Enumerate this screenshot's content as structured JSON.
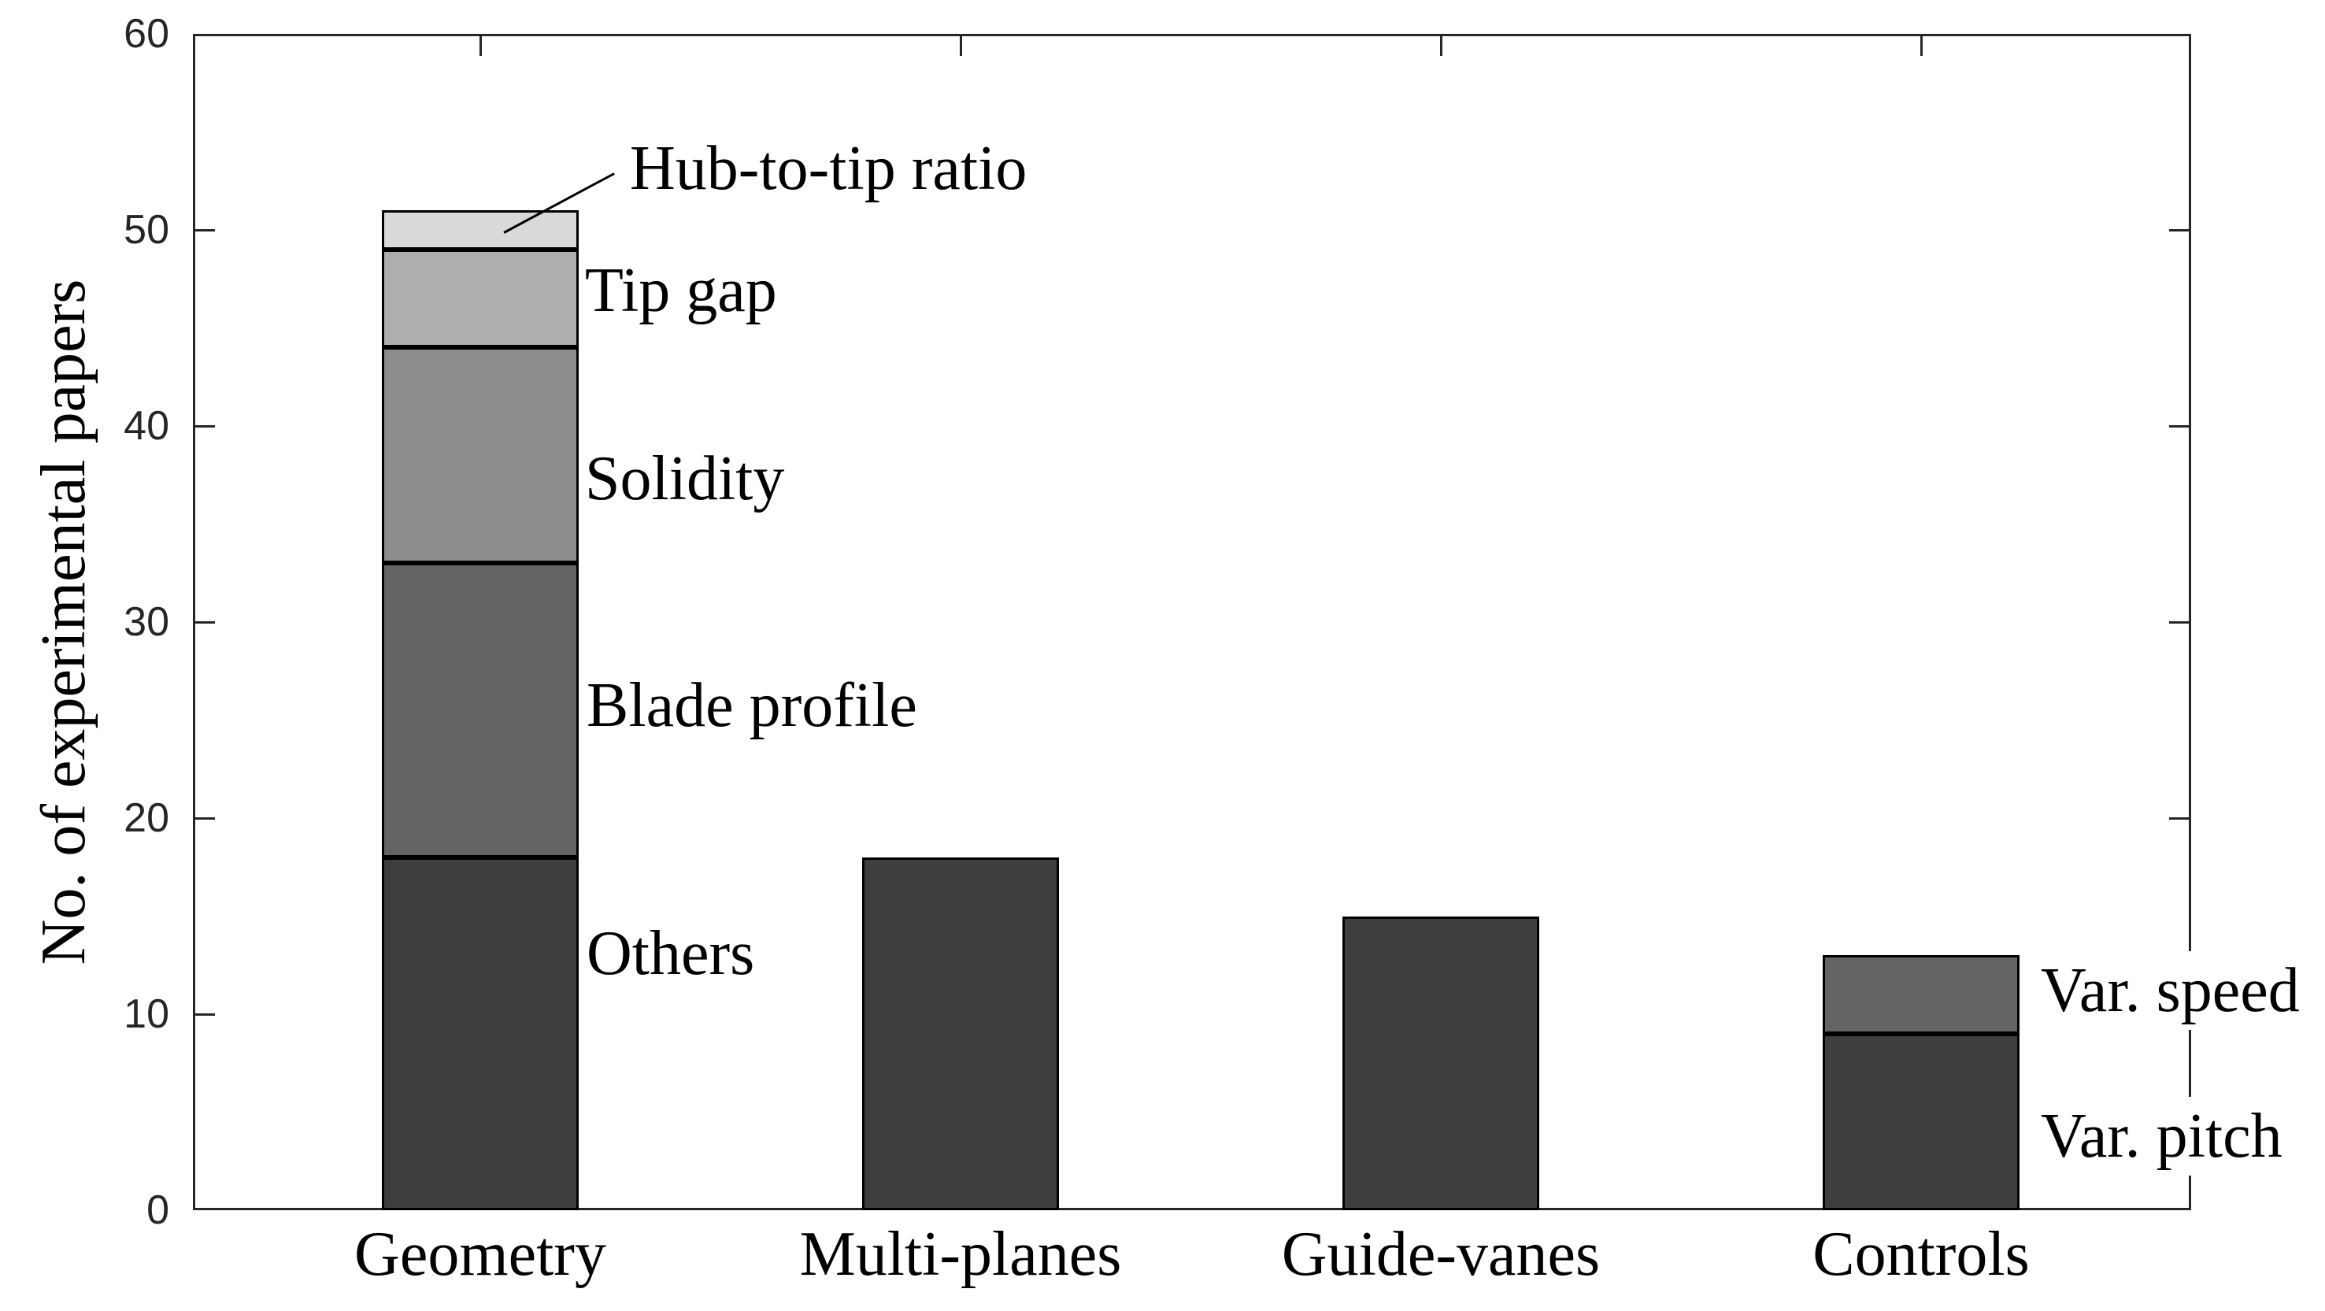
{
  "chart_data": {
    "type": "bar",
    "stacked": true,
    "title": "",
    "xlabel": "",
    "ylabel": "No. of experimental papers",
    "ylim": [
      0,
      60
    ],
    "yticks": [
      0,
      10,
      20,
      30,
      40,
      50,
      60
    ],
    "grid": false,
    "legend_position": "none",
    "categories": [
      "Geometry",
      "Multi-planes",
      "Guide-vanes",
      "Controls"
    ],
    "bars": [
      {
        "category": "Geometry",
        "total": 51,
        "segments": [
          {
            "label": "Others",
            "value": 18,
            "color": "#3e3e3e"
          },
          {
            "label": "Blade profile",
            "value": 15,
            "color": "#646464"
          },
          {
            "label": "Solidity",
            "value": 11,
            "color": "#8c8c8c"
          },
          {
            "label": "Tip gap",
            "value": 5,
            "color": "#aeaeae"
          },
          {
            "label": "Hub-to-tip ratio",
            "value": 2,
            "color": "#d9d9d9"
          }
        ]
      },
      {
        "category": "Multi-planes",
        "total": 18,
        "segments": [
          {
            "label": "",
            "value": 18,
            "color": "#3e3e3e"
          }
        ]
      },
      {
        "category": "Guide-vanes",
        "total": 15,
        "segments": [
          {
            "label": "",
            "value": 15,
            "color": "#3e3e3e"
          }
        ]
      },
      {
        "category": "Controls",
        "total": 13,
        "segments": [
          {
            "label": "Var. pitch",
            "value": 9,
            "color": "#3e3e3e"
          },
          {
            "label": "Var. speed",
            "value": 4,
            "color": "#646464"
          }
        ]
      }
    ],
    "annotations": [
      "Hub-to-tip ratio",
      "Tip gap",
      "Solidity",
      "Blade profile",
      "Others",
      "Var. speed",
      "Var. pitch"
    ],
    "colors": {
      "axis": "#262626",
      "text": "#000000",
      "background": "#ffffff"
    }
  }
}
